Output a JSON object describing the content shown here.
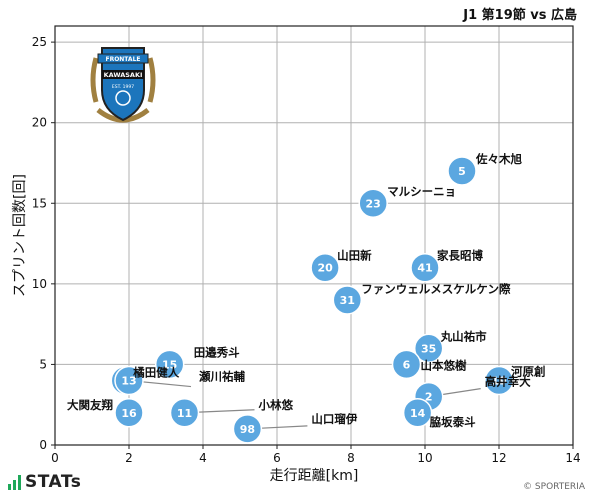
{
  "header": {
    "title": "J1 第19節 vs 広島"
  },
  "footer": {
    "brand": "STATs",
    "credit": "© SPORTERIA"
  },
  "badge": {
    "top_text": "FRONTALE",
    "name": "KAWASAKI",
    "est": "EST. 1997"
  },
  "colors": {
    "marker": "#5ba7e0",
    "marker_text": "#ffffff",
    "grid": "#b0b0b0",
    "leader": "#888888"
  },
  "chart_data": {
    "type": "scatter",
    "title": "J1 第19節 vs 広島",
    "xlabel": "走行距離[km]",
    "ylabel": "スプリント回数[回]",
    "xlim": [
      0,
      14
    ],
    "ylim": [
      0,
      26
    ],
    "xticks": [
      0,
      2,
      4,
      6,
      8,
      10,
      12,
      14
    ],
    "yticks": [
      0,
      5,
      10,
      15,
      20,
      25
    ],
    "grid": true,
    "points": [
      {
        "number": "5",
        "name": "佐々木旭",
        "x": 11.0,
        "y": 17
      },
      {
        "number": "23",
        "name": "マルシーニョ",
        "x": 8.6,
        "y": 15
      },
      {
        "number": "20",
        "name": "山田新",
        "x": 7.3,
        "y": 11
      },
      {
        "number": "41",
        "name": "家長昭博",
        "x": 10.0,
        "y": 11
      },
      {
        "number": "31",
        "name": "ファンウェルメスケルケン際",
        "x": 7.9,
        "y": 9
      },
      {
        "number": "35",
        "name": "丸山祐市",
        "x": 10.1,
        "y": 6
      },
      {
        "number": "6",
        "name": "山本悠樹",
        "x": 9.5,
        "y": 5
      },
      {
        "number": "15",
        "name": "田邉秀斗",
        "x": 3.1,
        "y": 5
      },
      {
        "number": "19",
        "name": "河原創",
        "x": 12.0,
        "y": 4
      },
      {
        "number": "18",
        "name": "橘田健人",
        "x": 1.9,
        "y": 4
      },
      {
        "number": "13",
        "name": "瀬川祐輔",
        "x": 2.0,
        "y": 4
      },
      {
        "number": "2",
        "name": "高井幸大",
        "x": 10.1,
        "y": 3
      },
      {
        "number": "16",
        "name": "大関友翔",
        "x": 2.0,
        "y": 2
      },
      {
        "number": "11",
        "name": "小林悠",
        "x": 3.5,
        "y": 2
      },
      {
        "number": "14",
        "name": "脇坂泰斗",
        "x": 9.8,
        "y": 2
      },
      {
        "number": "98",
        "name": "山口瑠伊",
        "x": 5.2,
        "y": 1
      }
    ]
  }
}
